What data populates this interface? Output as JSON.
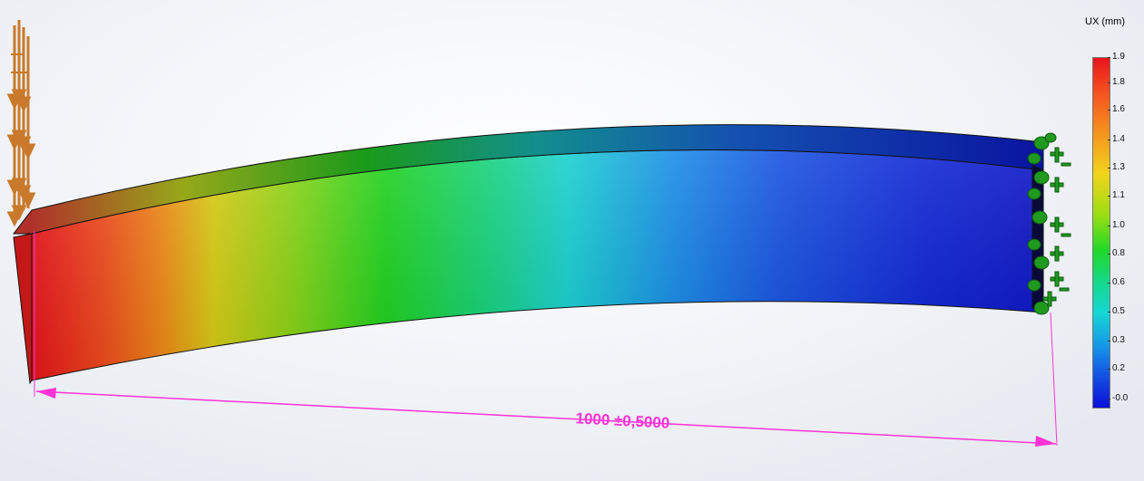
{
  "legend": {
    "title": "UX (mm)",
    "ticks": [
      "1.9",
      "1.8",
      "1.6",
      "1.4",
      "1.3",
      "1.1",
      "1.0",
      "0.8",
      "0.6",
      "0.5",
      "0.3",
      "0.2",
      "-0.0"
    ]
  },
  "dimension": {
    "label": "1000 ±0,5000",
    "color": "#ff33d6"
  },
  "colors": {
    "max": "#e8131c",
    "min": "#0a0fd8",
    "load_arrows": "#c87a2a",
    "fixture": "#1f9a1f"
  }
}
